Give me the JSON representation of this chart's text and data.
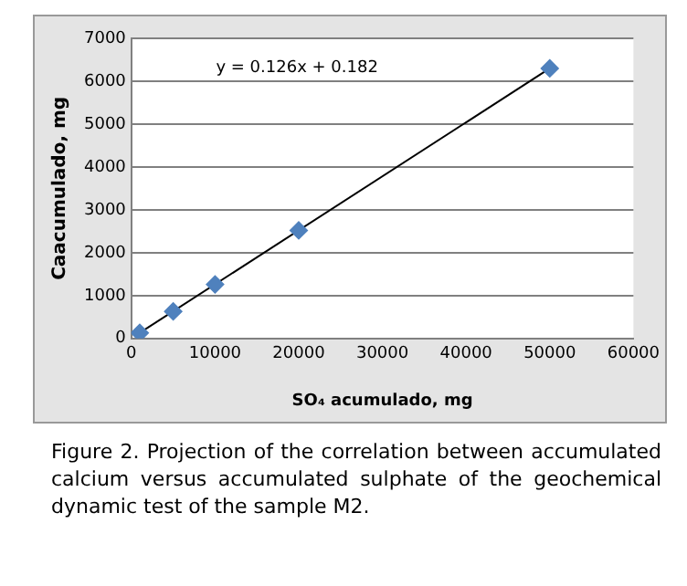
{
  "chart_data": {
    "type": "scatter",
    "xlabel": "SO₄ acumulado, mg",
    "ylabel": "Caacumulado, mg",
    "series": [
      {
        "color": "#4f81bd",
        "marker": "diamond",
        "x": [
          1000,
          5000,
          10000,
          20000,
          50000
        ],
        "values": [
          130,
          630,
          1260,
          2520,
          6300
        ]
      },
      {
        "type": "line",
        "color": "#000000",
        "marker": "none",
        "line_style": "solid",
        "x": [
          1000,
          50000
        ],
        "values": [
          130,
          6300
        ]
      }
    ],
    "xlim": [
      0,
      60000
    ],
    "xticks": [
      0,
      10000,
      20000,
      30000,
      40000,
      50000,
      60000
    ],
    "ylim": [
      0,
      7000
    ],
    "yticks": [
      0,
      1000,
      2000,
      3000,
      4000,
      5000,
      6000,
      7000
    ],
    "grid": "y",
    "legend": false,
    "annotations": [
      "y = 0.126x + 0.182",
      "Figure 2. Projection of the correlation between accumulated calcium versus accumulated sulphate of the geochemical dynamic test of the sample M2."
    ]
  }
}
